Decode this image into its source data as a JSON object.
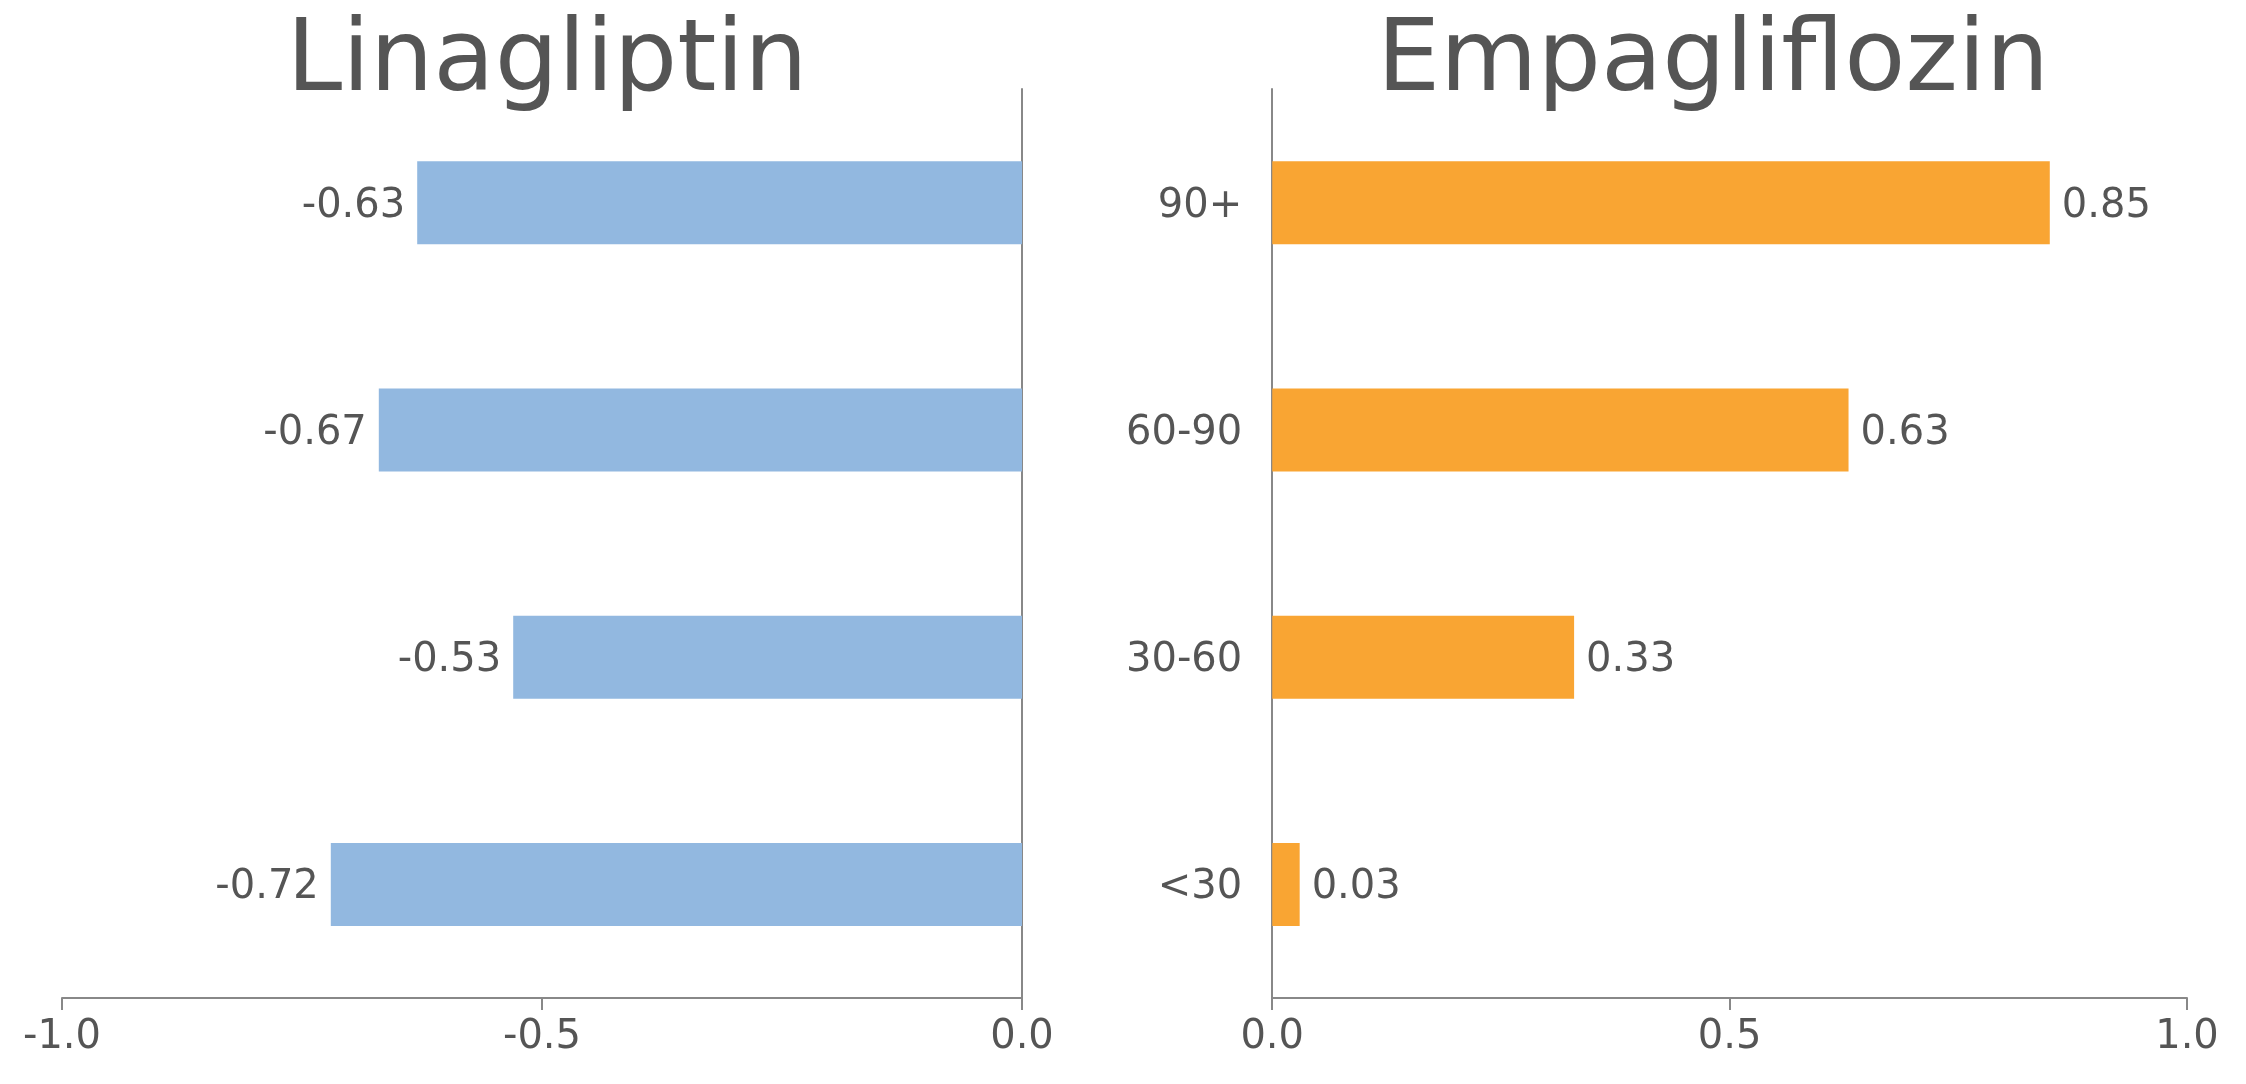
{
  "chart_data": [
    {
      "type": "bar",
      "title": "Linagliptin",
      "orientation": "horizontal",
      "categories": [
        null,
        null,
        null,
        null
      ],
      "values": [
        -0.63,
        -0.67,
        -0.53,
        -0.72
      ],
      "color": "#92b8e0",
      "xlim": [
        -1,
        0
      ],
      "xticks": [
        {
          "value": -1,
          "label": "-1.0"
        },
        {
          "value": -0.5,
          "label": "-0.5"
        },
        {
          "value": 0,
          "label": "0.0"
        }
      ],
      "data_labels": true,
      "grid": false,
      "tick_labels": "x"
    },
    {
      "type": "bar",
      "title": "Empagliflozin",
      "orientation": "horizontal",
      "categories": [
        "90+",
        "60-90",
        "30-60",
        "<30"
      ],
      "values": [
        0.85,
        0.63,
        0.33,
        0.03
      ],
      "color": "#f9a533",
      "xlim": [
        0,
        1
      ],
      "xticks": [
        {
          "value": 0,
          "label": "0.0"
        },
        {
          "value": 0.5,
          "label": "0.5"
        },
        {
          "value": 1,
          "label": "1.0"
        }
      ],
      "data_labels": true,
      "grid": false
    }
  ]
}
